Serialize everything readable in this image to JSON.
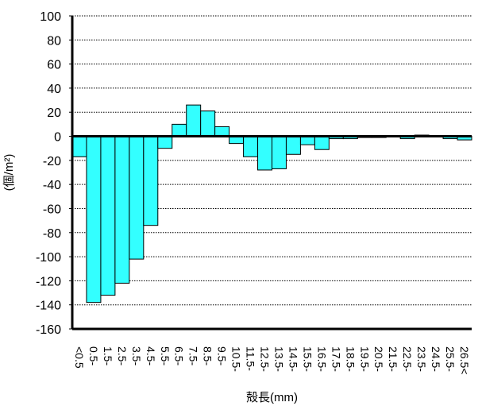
{
  "chart_data": {
    "type": "bar",
    "xlabel": "殻長(mm)",
    "ylabel": "(個/m²)",
    "ylim": [
      -160,
      100
    ],
    "yticks": [
      100,
      80,
      60,
      40,
      20,
      0,
      -20,
      -40,
      -60,
      -80,
      -100,
      -120,
      -140,
      -160
    ],
    "grid": true,
    "categories": [
      "<0.5",
      "0.5-",
      "1.5-",
      "2.5-",
      "3.5-",
      "4.5-",
      "5.5-",
      "6.5-",
      "7.5-",
      "8.5-",
      "9.5-",
      "10.5-",
      "11.5-",
      "12.5-",
      "13.5-",
      "14.5-",
      "15.5-",
      "16.5-",
      "17.5-",
      "18.5-",
      "19.5-",
      "20.5-",
      "21.5-",
      "22.5-",
      "23.5-",
      "24.5-",
      "25.5-",
      "26.5<"
    ],
    "values": [
      -17,
      -138,
      -132,
      -122,
      -102,
      -74,
      -10,
      10,
      26,
      21,
      8,
      -6,
      -17,
      -28,
      -27,
      -15,
      -7,
      -11,
      -2,
      -2,
      -1,
      -1,
      0,
      -2,
      1,
      0,
      -2,
      -3
    ],
    "colors": {
      "bar": "#33ffff",
      "edge": "#000000",
      "grid": "#000000"
    }
  }
}
